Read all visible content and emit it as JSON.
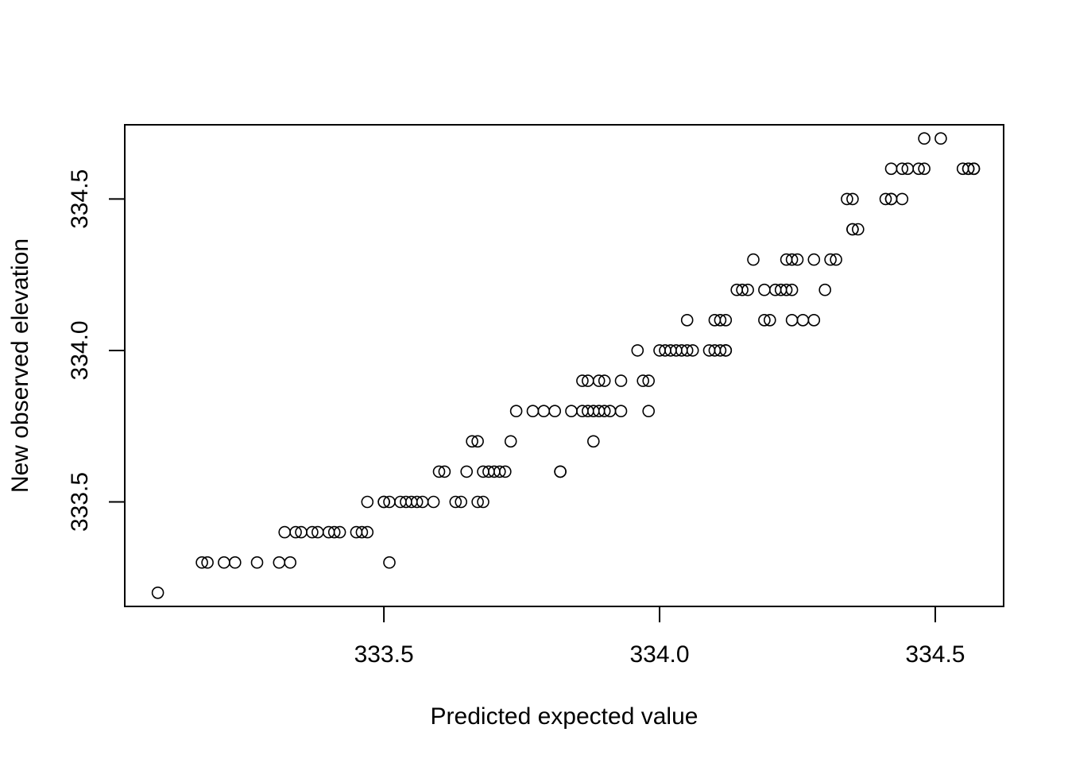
{
  "chart_data": {
    "type": "scatter",
    "title": "",
    "xlabel": "Predicted expected value",
    "ylabel": "New observed elevation",
    "xlim": [
      333.03,
      334.624
    ],
    "ylim": [
      333.155,
      334.745
    ],
    "xticks": [
      333.5,
      334.0,
      334.5
    ],
    "xtick_labels": [
      "333.5",
      "334.0",
      "334.5"
    ],
    "yticks": [
      333.5,
      334.0,
      334.5
    ],
    "ytick_labels": [
      "333.5",
      "334.0",
      "334.5"
    ],
    "grid": false,
    "legend": "none",
    "marker": "open-circle",
    "colors": {
      "points": "#000000",
      "axes": "#000000",
      "background": "#ffffff"
    },
    "points": [
      [
        333.09,
        333.2
      ],
      [
        333.17,
        333.3
      ],
      [
        333.18,
        333.3
      ],
      [
        333.21,
        333.3
      ],
      [
        333.23,
        333.3
      ],
      [
        333.27,
        333.3
      ],
      [
        333.31,
        333.3
      ],
      [
        333.33,
        333.3
      ],
      [
        333.51,
        333.3
      ],
      [
        333.32,
        333.4
      ],
      [
        333.34,
        333.4
      ],
      [
        333.35,
        333.4
      ],
      [
        333.37,
        333.4
      ],
      [
        333.38,
        333.4
      ],
      [
        333.4,
        333.4
      ],
      [
        333.41,
        333.4
      ],
      [
        333.42,
        333.4
      ],
      [
        333.45,
        333.4
      ],
      [
        333.46,
        333.4
      ],
      [
        333.47,
        333.4
      ],
      [
        333.47,
        333.5
      ],
      [
        333.5,
        333.5
      ],
      [
        333.5,
        333.5
      ],
      [
        333.51,
        333.5
      ],
      [
        333.53,
        333.5
      ],
      [
        333.54,
        333.5
      ],
      [
        333.55,
        333.5
      ],
      [
        333.56,
        333.5
      ],
      [
        333.57,
        333.5
      ],
      [
        333.59,
        333.5
      ],
      [
        333.63,
        333.5
      ],
      [
        333.64,
        333.5
      ],
      [
        333.67,
        333.5
      ],
      [
        333.68,
        333.5
      ],
      [
        333.6,
        333.6
      ],
      [
        333.61,
        333.6
      ],
      [
        333.65,
        333.6
      ],
      [
        333.68,
        333.6
      ],
      [
        333.69,
        333.6
      ],
      [
        333.7,
        333.6
      ],
      [
        333.71,
        333.6
      ],
      [
        333.72,
        333.6
      ],
      [
        333.82,
        333.6
      ],
      [
        333.82,
        333.6
      ],
      [
        333.66,
        333.7
      ],
      [
        333.67,
        333.7
      ],
      [
        333.73,
        333.7
      ],
      [
        333.88,
        333.7
      ],
      [
        333.74,
        333.8
      ],
      [
        333.77,
        333.8
      ],
      [
        333.79,
        333.8
      ],
      [
        333.81,
        333.8
      ],
      [
        333.84,
        333.8
      ],
      [
        333.86,
        333.8
      ],
      [
        333.87,
        333.8
      ],
      [
        333.88,
        333.8
      ],
      [
        333.89,
        333.8
      ],
      [
        333.9,
        333.8
      ],
      [
        333.91,
        333.8
      ],
      [
        333.93,
        333.8
      ],
      [
        333.98,
        333.8
      ],
      [
        333.86,
        333.9
      ],
      [
        333.87,
        333.9
      ],
      [
        333.89,
        333.9
      ],
      [
        333.9,
        333.9
      ],
      [
        333.93,
        333.9
      ],
      [
        333.97,
        333.9
      ],
      [
        333.98,
        333.9
      ],
      [
        333.96,
        334.0
      ],
      [
        334.0,
        334.0
      ],
      [
        334.01,
        334.0
      ],
      [
        334.02,
        334.0
      ],
      [
        334.03,
        334.0
      ],
      [
        334.04,
        334.0
      ],
      [
        334.05,
        334.0
      ],
      [
        334.06,
        334.0
      ],
      [
        334.09,
        334.0
      ],
      [
        334.1,
        334.0
      ],
      [
        334.11,
        334.0
      ],
      [
        334.12,
        334.0
      ],
      [
        334.12,
        334.0
      ],
      [
        334.05,
        334.1
      ],
      [
        334.1,
        334.1
      ],
      [
        334.11,
        334.1
      ],
      [
        334.12,
        334.1
      ],
      [
        334.19,
        334.1
      ],
      [
        334.2,
        334.1
      ],
      [
        334.24,
        334.1
      ],
      [
        334.26,
        334.1
      ],
      [
        334.28,
        334.1
      ],
      [
        334.14,
        334.2
      ],
      [
        334.15,
        334.2
      ],
      [
        334.16,
        334.2
      ],
      [
        334.19,
        334.2
      ],
      [
        334.21,
        334.2
      ],
      [
        334.22,
        334.2
      ],
      [
        334.23,
        334.2
      ],
      [
        334.24,
        334.2
      ],
      [
        334.3,
        334.2
      ],
      [
        334.17,
        334.3
      ],
      [
        334.23,
        334.3
      ],
      [
        334.24,
        334.3
      ],
      [
        334.25,
        334.3
      ],
      [
        334.28,
        334.3
      ],
      [
        334.31,
        334.3
      ],
      [
        334.32,
        334.3
      ],
      [
        334.35,
        334.4
      ],
      [
        334.35,
        334.4
      ],
      [
        334.36,
        334.4
      ],
      [
        334.34,
        334.5
      ],
      [
        334.35,
        334.5
      ],
      [
        334.41,
        334.5
      ],
      [
        334.42,
        334.5
      ],
      [
        334.42,
        334.5
      ],
      [
        334.44,
        334.5
      ],
      [
        334.42,
        334.6
      ],
      [
        334.44,
        334.6
      ],
      [
        334.45,
        334.6
      ],
      [
        334.47,
        334.6
      ],
      [
        334.48,
        334.6
      ],
      [
        334.55,
        334.6
      ],
      [
        334.56,
        334.6
      ],
      [
        334.56,
        334.6
      ],
      [
        334.57,
        334.6
      ],
      [
        334.57,
        334.6
      ],
      [
        334.48,
        334.7
      ],
      [
        334.51,
        334.7
      ]
    ]
  }
}
